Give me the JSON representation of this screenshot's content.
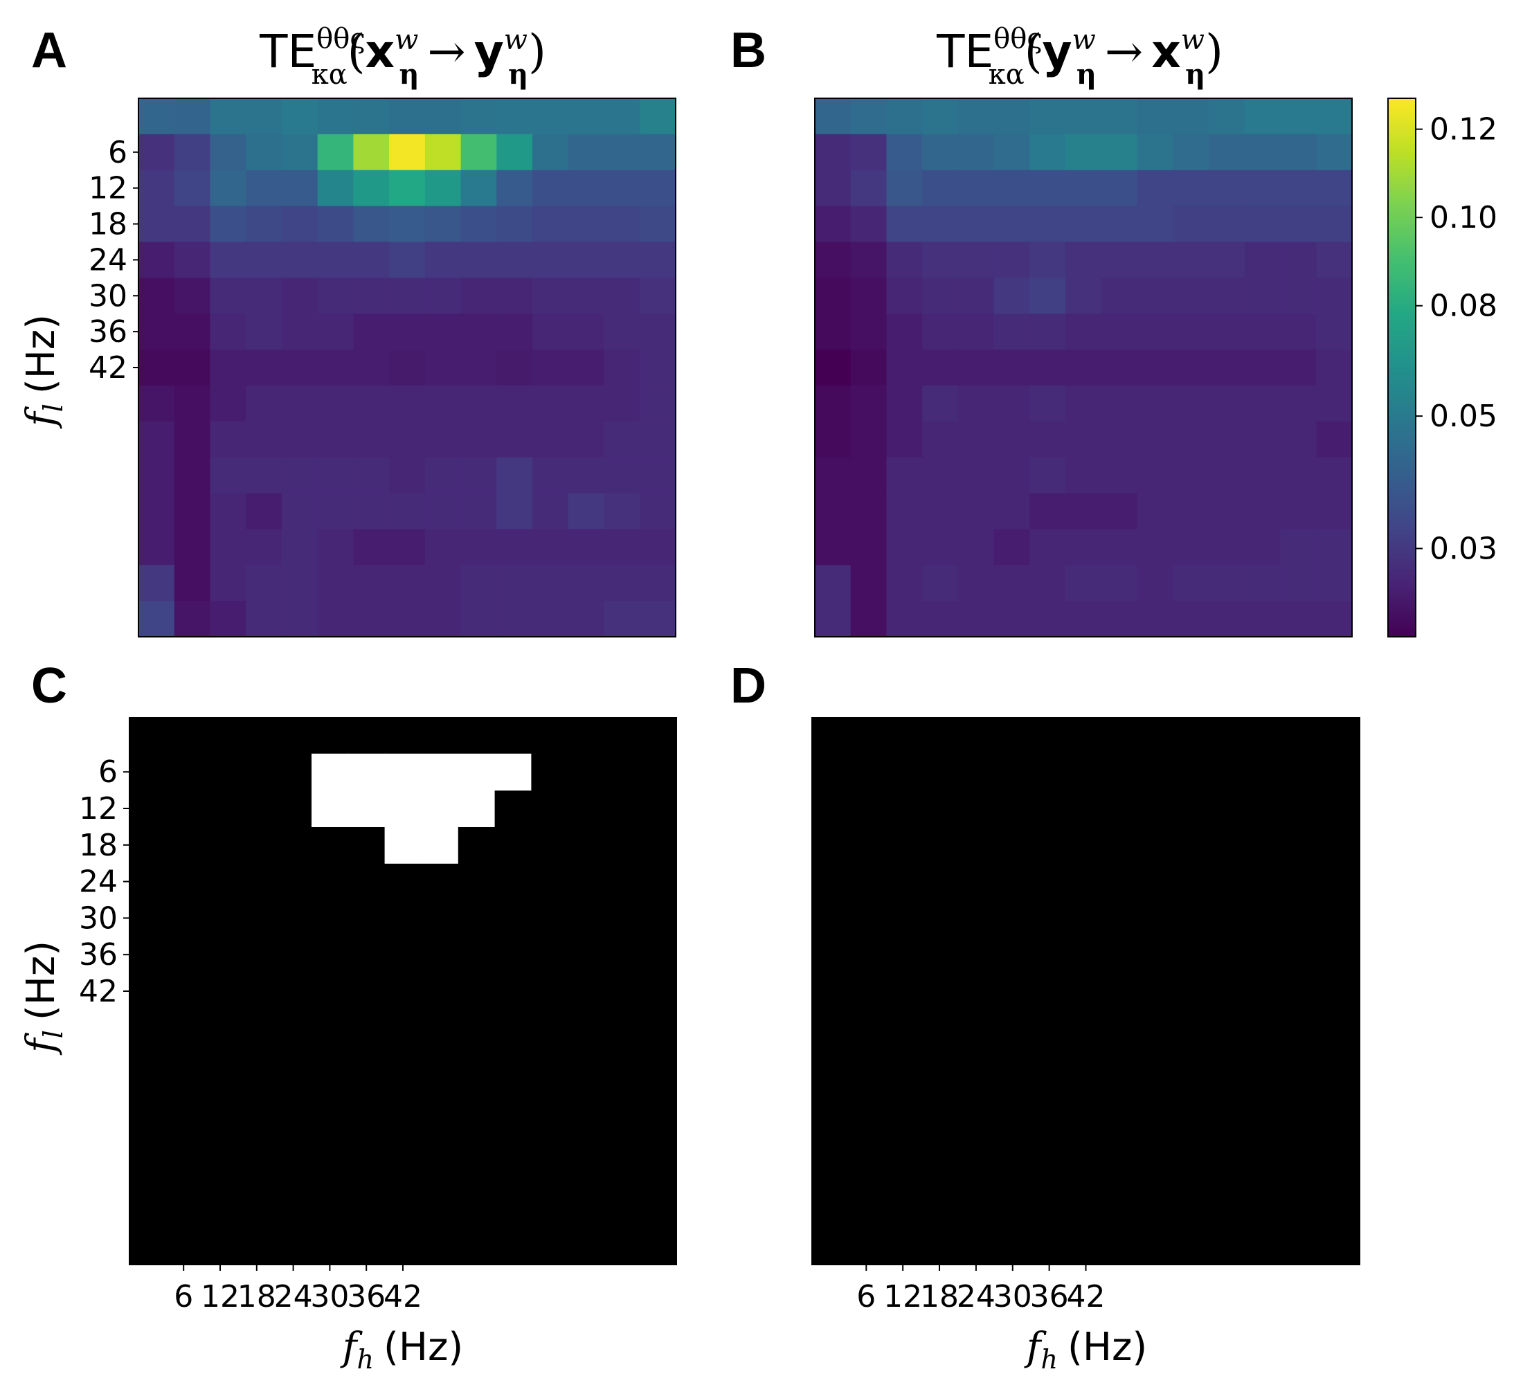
{
  "chart_data": [
    {
      "panel": "A",
      "type": "heatmap",
      "title": "TE^{θθς}_{κα}(x^w_η → y^w_η)",
      "title_parts": {
        "main": "TE",
        "sup": "θθς",
        "sub": "κα",
        "open": "(",
        "from": "x",
        "arrow": "→",
        "to": "y",
        "close": ")",
        "var_sup": "w",
        "var_sub": "η"
      },
      "xlabel": "",
      "ylabel": "f_l (Hz)",
      "ylabel_symbol": "f",
      "ylabel_sub": "l",
      "ylabel_unit": "(Hz)",
      "rows": 15,
      "cols": 15,
      "y_ticks": [
        "6",
        "12",
        "18",
        "24",
        "30",
        "36",
        "42"
      ],
      "x_ticks": [],
      "values": [
        [
          0.045,
          0.044,
          0.052,
          0.052,
          0.055,
          0.053,
          0.052,
          0.05,
          0.05,
          0.052,
          0.053,
          0.053,
          0.053,
          0.053,
          0.058
        ],
        [
          0.022,
          0.028,
          0.043,
          0.05,
          0.052,
          0.085,
          0.11,
          0.125,
          0.115,
          0.09,
          0.07,
          0.05,
          0.045,
          0.045,
          0.045
        ],
        [
          0.025,
          0.03,
          0.045,
          0.04,
          0.04,
          0.06,
          0.07,
          0.078,
          0.07,
          0.055,
          0.04,
          0.035,
          0.035,
          0.035,
          0.035
        ],
        [
          0.025,
          0.025,
          0.035,
          0.032,
          0.03,
          0.033,
          0.038,
          0.04,
          0.038,
          0.035,
          0.033,
          0.03,
          0.03,
          0.03,
          0.032
        ],
        [
          0.015,
          0.018,
          0.025,
          0.025,
          0.025,
          0.025,
          0.025,
          0.028,
          0.025,
          0.025,
          0.025,
          0.025,
          0.025,
          0.025,
          0.025
        ],
        [
          0.01,
          0.012,
          0.02,
          0.02,
          0.018,
          0.02,
          0.02,
          0.02,
          0.02,
          0.018,
          0.018,
          0.02,
          0.02,
          0.02,
          0.022
        ],
        [
          0.01,
          0.01,
          0.018,
          0.02,
          0.018,
          0.018,
          0.015,
          0.015,
          0.015,
          0.015,
          0.015,
          0.018,
          0.018,
          0.02,
          0.02
        ],
        [
          0.008,
          0.008,
          0.015,
          0.015,
          0.015,
          0.015,
          0.015,
          0.014,
          0.015,
          0.015,
          0.014,
          0.015,
          0.015,
          0.018,
          0.02
        ],
        [
          0.012,
          0.01,
          0.015,
          0.018,
          0.018,
          0.018,
          0.018,
          0.018,
          0.018,
          0.018,
          0.018,
          0.018,
          0.018,
          0.018,
          0.02
        ],
        [
          0.015,
          0.01,
          0.018,
          0.018,
          0.018,
          0.018,
          0.018,
          0.018,
          0.018,
          0.018,
          0.018,
          0.018,
          0.018,
          0.02,
          0.02
        ],
        [
          0.015,
          0.01,
          0.02,
          0.02,
          0.02,
          0.02,
          0.02,
          0.018,
          0.02,
          0.02,
          0.025,
          0.02,
          0.02,
          0.02,
          0.02
        ],
        [
          0.015,
          0.01,
          0.018,
          0.015,
          0.02,
          0.02,
          0.02,
          0.02,
          0.02,
          0.02,
          0.025,
          0.02,
          0.025,
          0.022,
          0.02
        ],
        [
          0.015,
          0.01,
          0.018,
          0.018,
          0.02,
          0.018,
          0.015,
          0.015,
          0.018,
          0.018,
          0.018,
          0.018,
          0.018,
          0.018,
          0.018
        ],
        [
          0.025,
          0.01,
          0.018,
          0.02,
          0.02,
          0.018,
          0.018,
          0.018,
          0.018,
          0.02,
          0.02,
          0.02,
          0.02,
          0.02,
          0.02
        ],
        [
          0.03,
          0.012,
          0.015,
          0.02,
          0.02,
          0.018,
          0.018,
          0.018,
          0.018,
          0.02,
          0.02,
          0.02,
          0.02,
          0.022,
          0.022
        ]
      ]
    },
    {
      "panel": "B",
      "type": "heatmap",
      "title": "TE^{θθς}_{κα}(y^w_η → x^w_η)",
      "title_parts": {
        "main": "TE",
        "sup": "θθς",
        "sub": "κα",
        "open": "(",
        "from": "y",
        "arrow": "→",
        "to": "x",
        "close": ")",
        "var_sup": "w",
        "var_sub": "η"
      },
      "xlabel": "",
      "ylabel": "",
      "rows": 15,
      "cols": 15,
      "y_ticks": [],
      "x_ticks": [],
      "values": [
        [
          0.045,
          0.048,
          0.05,
          0.052,
          0.05,
          0.05,
          0.052,
          0.052,
          0.052,
          0.05,
          0.05,
          0.052,
          0.055,
          0.055,
          0.055
        ],
        [
          0.02,
          0.022,
          0.04,
          0.045,
          0.045,
          0.048,
          0.055,
          0.058,
          0.058,
          0.052,
          0.048,
          0.045,
          0.045,
          0.045,
          0.048
        ],
        [
          0.02,
          0.025,
          0.038,
          0.035,
          0.035,
          0.035,
          0.035,
          0.035,
          0.035,
          0.03,
          0.03,
          0.03,
          0.03,
          0.03,
          0.03
        ],
        [
          0.015,
          0.018,
          0.03,
          0.03,
          0.03,
          0.03,
          0.03,
          0.03,
          0.03,
          0.03,
          0.028,
          0.028,
          0.028,
          0.028,
          0.028
        ],
        [
          0.01,
          0.012,
          0.02,
          0.022,
          0.022,
          0.022,
          0.025,
          0.022,
          0.022,
          0.022,
          0.022,
          0.022,
          0.02,
          0.02,
          0.022
        ],
        [
          0.008,
          0.01,
          0.018,
          0.02,
          0.02,
          0.025,
          0.028,
          0.022,
          0.02,
          0.02,
          0.02,
          0.02,
          0.02,
          0.02,
          0.02
        ],
        [
          0.008,
          0.01,
          0.015,
          0.018,
          0.018,
          0.02,
          0.02,
          0.018,
          0.018,
          0.018,
          0.018,
          0.018,
          0.018,
          0.018,
          0.02
        ],
        [
          0.005,
          0.008,
          0.015,
          0.015,
          0.015,
          0.015,
          0.015,
          0.015,
          0.015,
          0.015,
          0.015,
          0.015,
          0.015,
          0.015,
          0.018
        ],
        [
          0.008,
          0.01,
          0.015,
          0.02,
          0.018,
          0.018,
          0.02,
          0.018,
          0.018,
          0.018,
          0.018,
          0.018,
          0.018,
          0.018,
          0.018
        ],
        [
          0.008,
          0.01,
          0.015,
          0.018,
          0.018,
          0.018,
          0.018,
          0.018,
          0.018,
          0.018,
          0.018,
          0.018,
          0.018,
          0.018,
          0.015
        ],
        [
          0.01,
          0.01,
          0.018,
          0.018,
          0.018,
          0.018,
          0.02,
          0.018,
          0.018,
          0.018,
          0.018,
          0.018,
          0.018,
          0.018,
          0.018
        ],
        [
          0.01,
          0.01,
          0.018,
          0.018,
          0.018,
          0.018,
          0.015,
          0.015,
          0.015,
          0.018,
          0.018,
          0.018,
          0.018,
          0.018,
          0.018
        ],
        [
          0.01,
          0.01,
          0.018,
          0.018,
          0.018,
          0.015,
          0.018,
          0.018,
          0.018,
          0.018,
          0.018,
          0.018,
          0.018,
          0.02,
          0.02
        ],
        [
          0.02,
          0.01,
          0.018,
          0.02,
          0.018,
          0.018,
          0.018,
          0.02,
          0.02,
          0.018,
          0.02,
          0.02,
          0.02,
          0.02,
          0.02
        ],
        [
          0.02,
          0.01,
          0.018,
          0.018,
          0.018,
          0.018,
          0.018,
          0.018,
          0.018,
          0.018,
          0.018,
          0.018,
          0.018,
          0.018,
          0.018
        ]
      ]
    },
    {
      "panel": "C",
      "type": "heatmap",
      "title": "",
      "xlabel": "f_h (Hz)",
      "ylabel": "f_l (Hz)",
      "xlabel_symbol": "f",
      "xlabel_sub": "h",
      "xlabel_unit": "(Hz)",
      "ylabel_symbol": "f",
      "ylabel_sub": "l",
      "ylabel_unit": "(Hz)",
      "rows": 15,
      "cols": 15,
      "binary": true,
      "y_ticks": [
        "6",
        "12",
        "18",
        "24",
        "30",
        "36",
        "42"
      ],
      "x_ticks": [
        "6",
        "12",
        "18",
        "24",
        "30",
        "36",
        "42"
      ],
      "significant_cells": [
        [
          1,
          5
        ],
        [
          1,
          6
        ],
        [
          1,
          7
        ],
        [
          1,
          8
        ],
        [
          1,
          9
        ],
        [
          1,
          10
        ],
        [
          2,
          5
        ],
        [
          2,
          6
        ],
        [
          2,
          7
        ],
        [
          2,
          8
        ],
        [
          2,
          9
        ],
        [
          3,
          7
        ],
        [
          3,
          8
        ]
      ]
    },
    {
      "panel": "D",
      "type": "heatmap",
      "title": "",
      "xlabel": "f_h (Hz)",
      "ylabel": "",
      "xlabel_symbol": "f",
      "xlabel_sub": "h",
      "xlabel_unit": "(Hz)",
      "rows": 15,
      "cols": 15,
      "binary": true,
      "y_ticks": [],
      "x_ticks": [
        "6",
        "12",
        "18",
        "24",
        "30",
        "36",
        "42"
      ],
      "significant_cells": []
    }
  ],
  "colorbar": {
    "colormap": "viridis",
    "min": 0.005,
    "max": 0.127,
    "ticks": [
      {
        "label": "0.12",
        "value": 0.12
      },
      {
        "label": "0.10",
        "value": 0.1
      },
      {
        "label": "0.08",
        "value": 0.08
      },
      {
        "label": "0.05",
        "value": 0.055
      },
      {
        "label": "0.03",
        "value": 0.025
      }
    ]
  },
  "colors": {
    "significant": "#ffffff",
    "not_significant": "#000000",
    "axes": "#000000"
  }
}
